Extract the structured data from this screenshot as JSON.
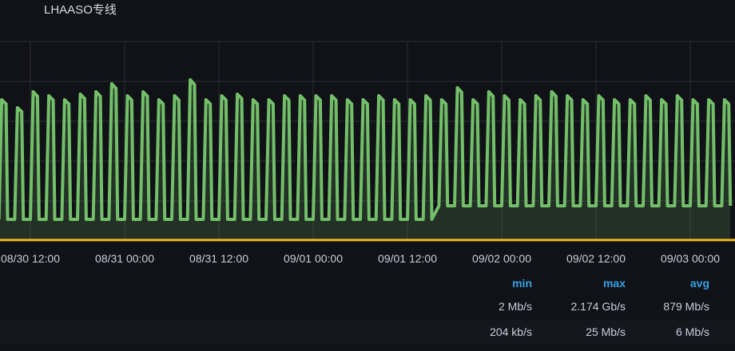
{
  "panel": {
    "title": "LHAASO专线"
  },
  "chart_data": {
    "type": "area",
    "title": "LHAASO专线",
    "unit": "Gb/s",
    "x_start": "08/30 08:00",
    "period_hours": 2,
    "x_tick_labels": [
      "08/30 12:00",
      "08/31 00:00",
      "08/31 12:00",
      "09/01 00:00",
      "09/01 12:00",
      "09/02 00:00",
      "09/02 12:00",
      "09/03 00:00"
    ],
    "ylim": [
      0,
      2.5
    ],
    "grid": true,
    "series": [
      {
        "color": "#73bf69",
        "peaks": [
          1.77,
          1.67,
          1.87,
          1.82,
          1.77,
          1.84,
          1.87,
          1.97,
          1.82,
          1.87,
          1.77,
          1.82,
          2.02,
          1.77,
          1.82,
          1.84,
          1.77,
          1.77,
          1.82,
          1.82,
          1.82,
          1.82,
          1.77,
          1.77,
          1.82,
          1.77,
          1.77,
          1.82,
          1.77,
          1.92,
          1.77,
          1.87,
          1.82,
          1.77,
          1.82,
          1.87,
          1.82,
          1.77,
          1.82,
          1.77,
          1.77,
          1.82,
          1.77,
          1.82,
          1.77,
          1.77,
          1.77
        ],
        "troughs": [
          0.27,
          0.27,
          0.27,
          0.27,
          0.27,
          0.27,
          0.27,
          0.27,
          0.27,
          0.27,
          0.27,
          0.27,
          0.27,
          0.27,
          0.27,
          0.27,
          0.27,
          0.27,
          0.27,
          0.27,
          0.27,
          0.27,
          0.27,
          0.27,
          0.27,
          0.27,
          0.27,
          0.27,
          0.44,
          0.44,
          0.44,
          0.44,
          0.44,
          0.44,
          0.44,
          0.44,
          0.44,
          0.44,
          0.44,
          0.44,
          0.44,
          0.44,
          0.44,
          0.44,
          0.44,
          0.44,
          0.44
        ]
      },
      {
        "color": "#fade2a",
        "level": 0.006
      }
    ]
  },
  "legend": {
    "headers": {
      "min": "min",
      "max": "max",
      "avg": "avg"
    },
    "rows": [
      {
        "min": "2 Mb/s",
        "max": "2.174 Gb/s",
        "avg": "879 Mb/s"
      },
      {
        "min": "204 kb/s",
        "max": "25 Mb/s",
        "avg": "6 Mb/s"
      }
    ]
  }
}
